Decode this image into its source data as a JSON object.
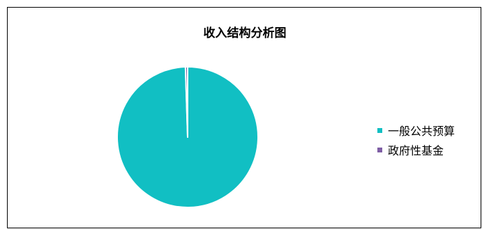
{
  "chart_data": {
    "type": "pie",
    "title": "收入结构分析图",
    "series": [
      {
        "name": "一般公共预算",
        "value": 99.5,
        "color": "#11BFC3"
      },
      {
        "name": "政府性基金",
        "value": 0.5,
        "color": "#7F5FA5"
      }
    ],
    "legend_position": "right",
    "start_angle_deg": 0
  }
}
